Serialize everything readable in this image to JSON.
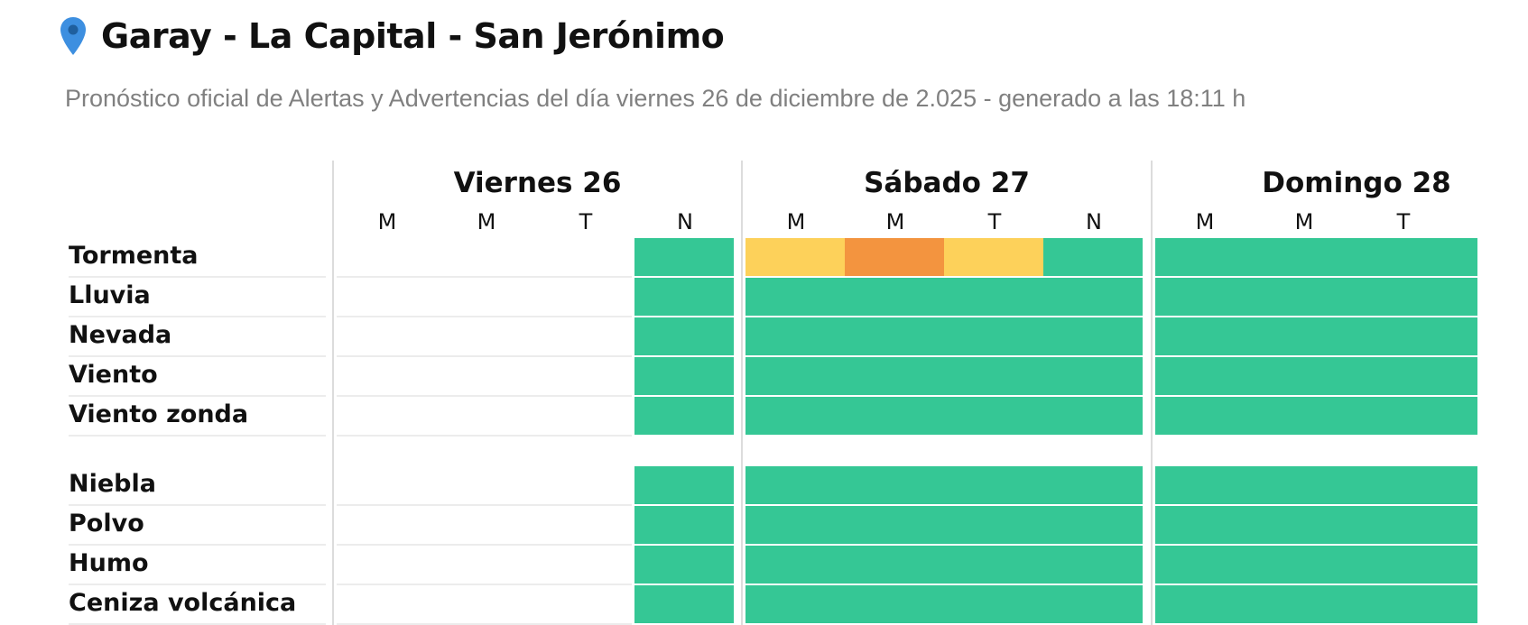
{
  "header": {
    "title": "Garay - La Capital - San Jerónimo",
    "subtitle": "Pronóstico oficial de Alertas y Advertencias del día viernes 26 de diciembre de 2.025 - generado a las 18:11 h",
    "pin_icon": "location-pin-icon",
    "pin_color": "#3d8fe0"
  },
  "days": [
    {
      "name": "Viernes 26",
      "periods": [
        "M",
        "M",
        "T",
        "N"
      ]
    },
    {
      "name": "Sábado 27",
      "periods": [
        "M",
        "M",
        "T",
        "N"
      ]
    },
    {
      "name": "Domingo 28",
      "periods": [
        "M",
        "M",
        "T"
      ]
    }
  ],
  "legend_colors": {
    "green": "#35c795",
    "yellow": "#fdd15a",
    "orange": "#f3943f"
  },
  "rows": [
    {
      "label": "Tormenta",
      "levels": [
        null,
        null,
        null,
        "green",
        "yellow",
        "orange",
        "yellow",
        "green",
        "green",
        "green",
        "green"
      ]
    },
    {
      "label": "Lluvia",
      "levels": [
        null,
        null,
        null,
        "green",
        "green",
        "green",
        "green",
        "green",
        "green",
        "green",
        "green"
      ]
    },
    {
      "label": "Nevada",
      "levels": [
        null,
        null,
        null,
        "green",
        "green",
        "green",
        "green",
        "green",
        "green",
        "green",
        "green"
      ]
    },
    {
      "label": "Viento",
      "levels": [
        null,
        null,
        null,
        "green",
        "green",
        "green",
        "green",
        "green",
        "green",
        "green",
        "green"
      ]
    },
    {
      "label": "Viento zonda",
      "levels": [
        null,
        null,
        null,
        "green",
        "green",
        "green",
        "green",
        "green",
        "green",
        "green",
        "green"
      ]
    },
    {
      "label": "Niebla",
      "levels": [
        null,
        null,
        null,
        "green",
        "green",
        "green",
        "green",
        "green",
        "green",
        "green",
        "green"
      ]
    },
    {
      "label": "Polvo",
      "levels": [
        null,
        null,
        null,
        "green",
        "green",
        "green",
        "green",
        "green",
        "green",
        "green",
        "green"
      ]
    },
    {
      "label": "Humo",
      "levels": [
        null,
        null,
        null,
        "green",
        "green",
        "green",
        "green",
        "green",
        "green",
        "green",
        "green"
      ]
    },
    {
      "label": "Ceniza volcánica",
      "levels": [
        null,
        null,
        null,
        "green",
        "green",
        "green",
        "green",
        "green",
        "green",
        "green",
        "green"
      ]
    }
  ]
}
